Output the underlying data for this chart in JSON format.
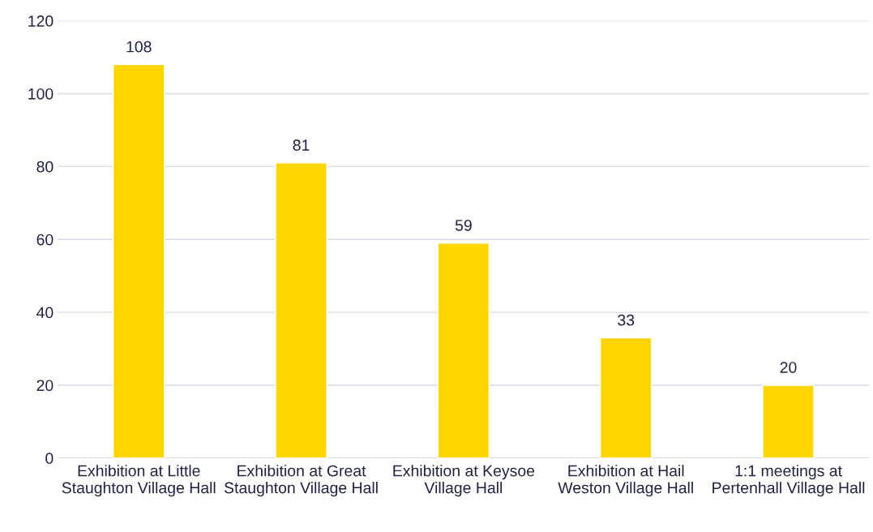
{
  "chart_data": {
    "type": "bar",
    "categories": [
      "Exhibition at Little Staughton Village Hall",
      "Exhibition at Great Staughton Village Hall",
      "Exhibition at Keysoe Village Hall",
      "Exhibition at Hail Weston Village Hall",
      "1:1 meetings at Pertenhall Village Hall"
    ],
    "values": [
      108,
      81,
      59,
      33,
      20
    ],
    "color": "#ffd500",
    "ylim": [
      0,
      120
    ],
    "yticks": [
      0,
      20,
      40,
      60,
      80,
      100,
      120
    ],
    "grid": "y",
    "data_labels": true
  }
}
